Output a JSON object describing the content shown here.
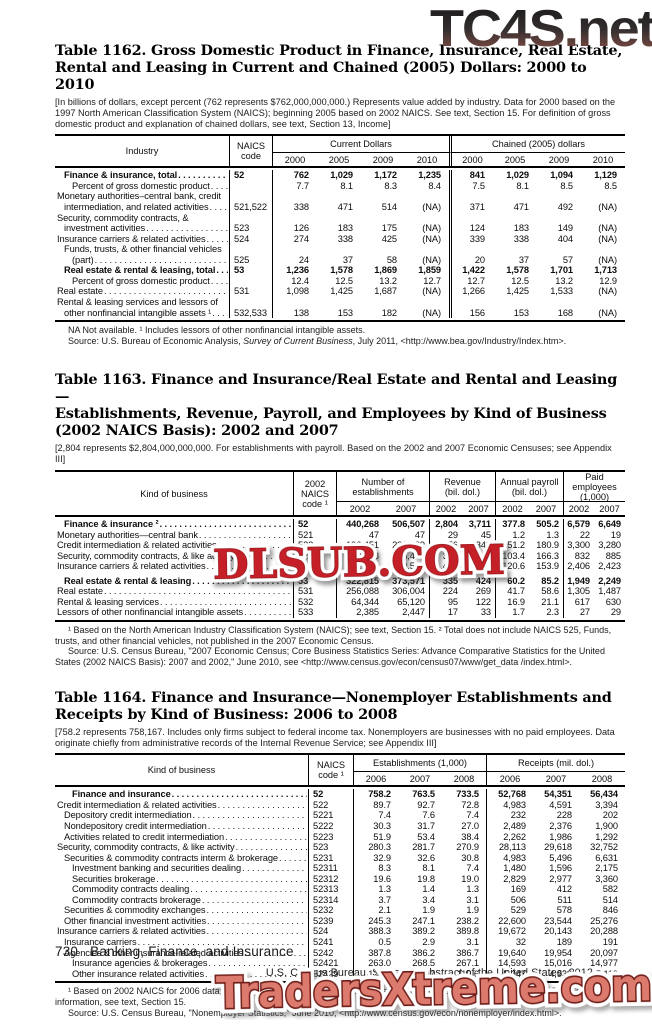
{
  "watermarks": {
    "top": "TC4S.net",
    "middle": "DLSUB.COM",
    "bottom": "TradersXtreme.com"
  },
  "footer": {
    "page_number": "730",
    "section_title": "Banking, Finance, and Insurance",
    "source_right": "U.S. Census Bureau, Statistical Abstract of the United States: 2012"
  },
  "tables": {
    "t1162": {
      "title": [
        "Table 1162. Gross Domestic Product in Finance, Insurance, Real Estate,",
        "Rental and Leasing in Current and Chained (2005) Dollars: 2000 to 2010"
      ],
      "note": "[In billions of dollars, except percent (762 represents $762,000,000,000.) Represents value added by industry. Data for 2000 based on the 1997 North American Classification System (NAICS); beginning 2005 based on 2002 NAICS. See text, Section 15. For definition of gross domestic product and explanation of chained dollars, see text, Section 13, Income]",
      "header": {
        "col_industry": "Industry",
        "col_naics": "NAICS\ncode",
        "group_current": "Current Dollars",
        "group_chained": "Chained (2005) dollars",
        "years": [
          "2000",
          "2005",
          "2009",
          "2010"
        ]
      },
      "rows": [
        {
          "label": "Finance & insurance, total",
          "bold": true,
          "indent": 1,
          "leader": true,
          "naics": "52",
          "values": [
            "762",
            "1,029",
            "1,172",
            "1,235",
            "841",
            "1,029",
            "1,094",
            "1,129"
          ]
        },
        {
          "label": "Percent of gross domestic product",
          "indent": 2,
          "leader": true,
          "naics": "",
          "values": [
            "7.7",
            "8.1",
            "8.3",
            "8.4",
            "7.5",
            "8.1",
            "8.5",
            "8.5"
          ]
        },
        {
          "label": "Monetary authorities–central bank, credit",
          "indent": 0,
          "leader": false,
          "naics": "",
          "values": []
        },
        {
          "label": "intermediation, and related activities",
          "indent": 1,
          "leader": true,
          "naics": "521,522",
          "values": [
            "338",
            "471",
            "514",
            "(NA)",
            "371",
            "471",
            "492",
            "(NA)"
          ]
        },
        {
          "label": "Security, commodity contracts, &",
          "indent": 0,
          "leader": false,
          "naics": "",
          "values": []
        },
        {
          "label": "investment activities",
          "indent": 1,
          "leader": true,
          "naics": "523",
          "values": [
            "126",
            "183",
            "175",
            "(NA)",
            "124",
            "183",
            "149",
            "(NA)"
          ]
        },
        {
          "label": "Insurance carriers & related activities",
          "indent": 0,
          "leader": true,
          "naics": "524",
          "values": [
            "274",
            "338",
            "425",
            "(NA)",
            "339",
            "338",
            "404",
            "(NA)"
          ]
        },
        {
          "label": "Funds, trusts, & other financial vehicles",
          "indent": 1,
          "leader": false,
          "naics": "",
          "values": []
        },
        {
          "label": "(part)",
          "indent": 2,
          "leader": true,
          "naics": "525",
          "values": [
            "24",
            "37",
            "58",
            "(NA)",
            "20",
            "37",
            "57",
            "(NA)"
          ]
        },
        {
          "label": "Real estate & rental & leasing, total",
          "bold": true,
          "indent": 1,
          "leader": true,
          "naics": "53",
          "values": [
            "1,236",
            "1,578",
            "1,869",
            "1,859",
            "1,422",
            "1,578",
            "1,701",
            "1,713"
          ]
        },
        {
          "label": "Percent of gross domestic product",
          "indent": 2,
          "leader": true,
          "naics": "",
          "values": [
            "12.4",
            "12.5",
            "13.2",
            "12.7",
            "12.7",
            "12.5",
            "13.2",
            "12.9"
          ]
        },
        {
          "label": "Real estate",
          "indent": 0,
          "leader": true,
          "naics": "531",
          "values": [
            "1,098",
            "1,425",
            "1,687",
            "(NA)",
            "1,266",
            "1,425",
            "1,533",
            "(NA)"
          ]
        },
        {
          "label": "Rental & leasing services and lessors of",
          "indent": 0,
          "leader": false,
          "naics": "",
          "values": []
        },
        {
          "label": "other nonfinancial intangible assets ¹",
          "indent": 1,
          "leader": true,
          "naics": "532,533",
          "values": [
            "138",
            "153",
            "182",
            "(NA)",
            "156",
            "153",
            "168",
            "(NA)"
          ]
        }
      ],
      "footnote": "NA Not available. ¹ Includes lessors of other nonfinancial intangible assets.",
      "source_pre": "Source: U.S. Bureau of Economic Analysis, ",
      "source_italic": "Survey of Current Business",
      "source_post": ", July 2011, <http://www.bea.gov/Industry/Index.htm>."
    },
    "t1163": {
      "title": [
        "Table 1163. Finance and Insurance/Real Estate and Rental and Leasing—",
        "Establishments, Revenue, Payroll, and Employees by Kind of Business",
        "(2002 NAICS Basis): 2002 and 2007"
      ],
      "note": "[2,804 represents $2,804,000,000,000. For establishments with payroll. Based on the 2002 and 2007 Economic Censuses; see Appendix III]",
      "header": {
        "col_kind": "Kind of business",
        "col_naics": "2002\nNAICS\ncode ¹",
        "group_establishments": "Number of\nestablishments",
        "group_revenue": "Revenue\n(bil. dol.)",
        "group_payroll": "Annual payroll\n(bil. dol.)",
        "group_employees": "Paid employees\n(1,000)",
        "years": [
          "2002",
          "2007"
        ]
      },
      "rows": [
        {
          "label": "Finance & insurance ²",
          "bold": true,
          "indent": 1,
          "leader": true,
          "naics": "52",
          "values": [
            "440,268",
            "506,507",
            "2,804",
            "3,711",
            "377.8",
            "505.2",
            "6,579",
            "6,649"
          ]
        },
        {
          "label": "Monetary authorities—central bank",
          "indent": 0,
          "leader": true,
          "naics": "521",
          "values": [
            "47",
            "47",
            "29",
            "45",
            "1.2",
            "1.3",
            "22",
            "19"
          ]
        },
        {
          "label": "Credit intermediation & related activities",
          "indent": 0,
          "leader": true,
          "naics": "522",
          "values": [
            "196,451",
            "231,439",
            "1,056",
            "1,343",
            "151.2",
            "180.9",
            "3,300",
            "3,280"
          ]
        },
        {
          "label": "Security, commodity contracts, & like activity",
          "indent": 0,
          "leader": true,
          "naics": "523",
          "values": [
            "72,338",
            "85,475",
            "316",
            "612",
            "103.4",
            "166.3",
            "832",
            "885"
          ]
        },
        {
          "label": "Insurance carriers & related activities",
          "indent": 0,
          "leader": true,
          "naics": "524",
          "values": [
            "171,432",
            "189,593",
            "1,403",
            "1,711",
            "120.6",
            "153.9",
            "2,406",
            "2,423"
          ]
        },
        {
          "label": "Real estate & rental & leasing",
          "bold": true,
          "indent": 1,
          "leader": true,
          "naics": "53",
          "gap": true,
          "values": [
            "322,815",
            "373,571",
            "335",
            "424",
            "60.2",
            "85.2",
            "1,949",
            "2,249"
          ]
        },
        {
          "label": "Real estate",
          "indent": 0,
          "leader": true,
          "naics": "531",
          "values": [
            "256,088",
            "306,004",
            "224",
            "269",
            "41.7",
            "58.6",
            "1,305",
            "1,487"
          ]
        },
        {
          "label": "Rental & leasing services",
          "indent": 0,
          "leader": true,
          "naics": "532",
          "values": [
            "64,344",
            "65,120",
            "95",
            "122",
            "16.9",
            "21.1",
            "617",
            "630"
          ]
        },
        {
          "label": "Lessors of other nonfinancial intangible assets",
          "indent": 0,
          "leader": true,
          "naics": "533",
          "values": [
            "2,385",
            "2,447",
            "17",
            "33",
            "1.7",
            "2.3",
            "27",
            "29"
          ]
        }
      ],
      "footnote": "¹ Based on the North American Industry Classification System (NAICS); see text, Section 15. ² Total does not include NAICS 525, Funds, trusts, and other financial vehicles, not published in the 2007 Economic Census.",
      "source": "Source: U.S. Census Bureau, \"2007 Economic Census; Core Business Statistics Series: Advance Comparative Statistics for the United States (2002 NAICS Basis): 2007 and 2002,\" June 2010, see <http://www.census.gov/econ/census07/www/get_data /index.html>."
    },
    "t1164": {
      "title": [
        "Table 1164. Finance and Insurance—Nonemployer Establishments and",
        "Receipts by Kind of Business: 2006 to 2008"
      ],
      "note": "[758.2 represents 758,167. Includes only firms subject to federal income tax. Nonemployers are businesses with no paid employees. Data originate chiefly from administrative records of the Internal Revenue Service; see Appendix III]",
      "header": {
        "col_kind": "Kind of business",
        "col_naics": "NAICS\ncode ¹",
        "group_establishments": "Establishments (1,000)",
        "group_receipts": "Receipts (mil. dol.)",
        "years": [
          "2006",
          "2007",
          "2008"
        ]
      },
      "rows": [
        {
          "label": "Finance and insurance",
          "bold": true,
          "indent": 2,
          "leader": true,
          "naics": "52",
          "values": [
            "758.2",
            "763.5",
            "733.5",
            "52,768",
            "54,351",
            "56,434"
          ]
        },
        {
          "label": "Credit intermediation & related activities",
          "indent": 0,
          "leader": true,
          "naics": "522",
          "values": [
            "89.7",
            "92.7",
            "72.8",
            "4,983",
            "4,591",
            "3,394"
          ]
        },
        {
          "label": "Depository credit intermediation",
          "indent": 1,
          "leader": true,
          "naics": "5221",
          "values": [
            "7.4",
            "7.6",
            "7.4",
            "232",
            "228",
            "202"
          ]
        },
        {
          "label": "Nondepository credit intermediation",
          "indent": 1,
          "leader": true,
          "naics": "5222",
          "values": [
            "30.3",
            "31.7",
            "27.0",
            "2,489",
            "2,376",
            "1,900"
          ]
        },
        {
          "label": "Activities related to credit intermediation",
          "indent": 1,
          "leader": true,
          "naics": "5223",
          "values": [
            "51.9",
            "53.4",
            "38.4",
            "2,262",
            "1,986",
            "1,292"
          ]
        },
        {
          "label": "Security, commodity contracts, & like activity",
          "indent": 0,
          "leader": true,
          "naics": "523",
          "values": [
            "280.3",
            "281.7",
            "270.9",
            "28,113",
            "29,618",
            "32,752"
          ]
        },
        {
          "label": "Securities & commodity contracts interm & brokerage",
          "indent": 1,
          "leader": true,
          "naics": "5231",
          "values": [
            "32.9",
            "32.6",
            "30.8",
            "4,983",
            "5,496",
            "6,631"
          ]
        },
        {
          "label": "Investment banking and securities dealing",
          "indent": 2,
          "leader": true,
          "naics": "52311",
          "values": [
            "8.3",
            "8.1",
            "7.4",
            "1,480",
            "1,596",
            "2,175"
          ]
        },
        {
          "label": "Securities brokerage",
          "indent": 2,
          "leader": true,
          "naics": "52312",
          "values": [
            "19.6",
            "19.8",
            "19.0",
            "2,829",
            "2,977",
            "3,360"
          ]
        },
        {
          "label": "Commodity contracts dealing",
          "indent": 2,
          "leader": true,
          "naics": "52313",
          "values": [
            "1.3",
            "1.4",
            "1.3",
            "169",
            "412",
            "582"
          ]
        },
        {
          "label": "Commodity contracts brokerage",
          "indent": 2,
          "leader": true,
          "naics": "52314",
          "values": [
            "3.7",
            "3.4",
            "3.1",
            "506",
            "511",
            "514"
          ]
        },
        {
          "label": "Securities & commodity exchanges",
          "indent": 1,
          "leader": true,
          "naics": "5232",
          "values": [
            "2.1",
            "1.9",
            "1.9",
            "529",
            "578",
            "846"
          ]
        },
        {
          "label": "Other financial investment activities",
          "indent": 1,
          "leader": true,
          "naics": "5239",
          "values": [
            "245.3",
            "247.1",
            "238.2",
            "22,600",
            "23,544",
            "25,276"
          ]
        },
        {
          "label": "Insurance carriers & related activities",
          "indent": 0,
          "leader": true,
          "naics": "524",
          "values": [
            "388.3",
            "389.2",
            "389.8",
            "19,672",
            "20,143",
            "20,288"
          ]
        },
        {
          "label": "Insurance carriers",
          "indent": 1,
          "leader": true,
          "naics": "5241",
          "values": [
            "0.5",
            "2.9",
            "3.1",
            "32",
            "189",
            "191"
          ]
        },
        {
          "label": "Agencies & other insurance-related activities",
          "indent": 1,
          "leader": true,
          "naics": "5242",
          "values": [
            "387.8",
            "386.2",
            "386.7",
            "19,640",
            "19,954",
            "20,097"
          ]
        },
        {
          "label": "Insurance agencies & brokerages",
          "indent": 2,
          "leader": true,
          "naics": "52421",
          "values": [
            "263.0",
            "268.5",
            "267.1",
            "14,593",
            "15,016",
            "14,977"
          ]
        },
        {
          "label": "Other insurance related activities",
          "indent": 2,
          "leader": true,
          "naics": "52429",
          "values": [
            "125.2",
            "117.7",
            "119.6",
            "5,047",
            "4,938",
            "5,119"
          ]
        }
      ],
      "footnote": "¹ Based on 2002 NAICS for 2006 data; data for 2007 and 2008, 2007 North American Industry Classification System (NAICS). For more information, see text, Section 15.",
      "source": "Source: U.S. Census Bureau, \"Nonemployer Statistics,\" June 2010, <http://www.census.gov/econ/nonemployer/index.html>."
    }
  }
}
